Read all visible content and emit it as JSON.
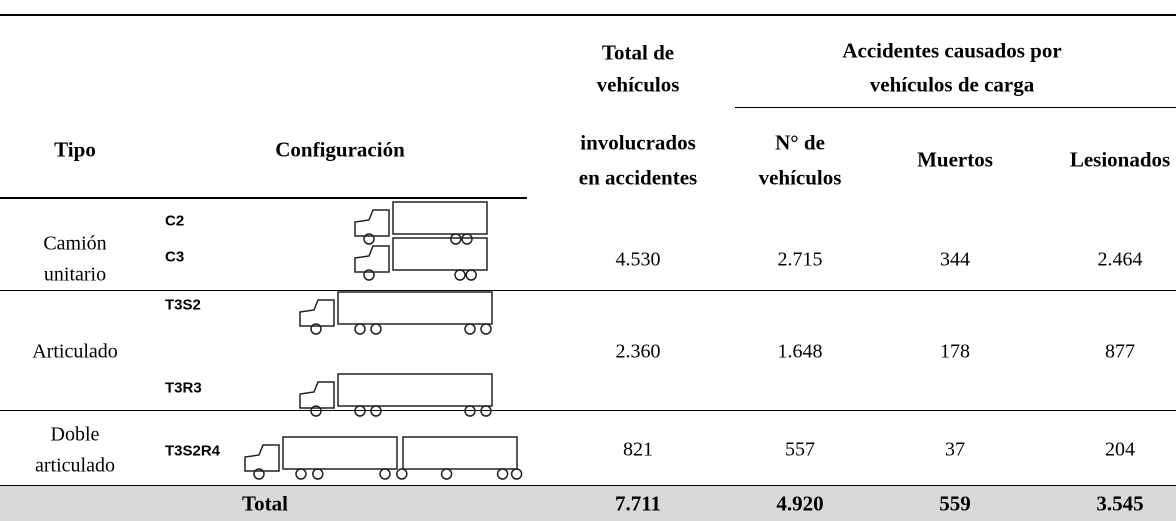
{
  "table": {
    "header": {
      "type": "Tipo",
      "configuration": "Configuración",
      "total_vehicles": [
        "Total de",
        "vehículos",
        "involucrados",
        "en accidentes"
      ],
      "accidents": [
        "Accidentes causados por",
        "vehículos de carga"
      ],
      "columns": [
        [
          "N° de",
          "vehículos"
        ],
        [
          "Muertos"
        ],
        [
          "Lesionados"
        ]
      ]
    },
    "rows": [
      {
        "type": [
          "Camión",
          "unitario"
        ],
        "configurations": [
          "C2",
          "C3"
        ],
        "total_vehicles": "4.530",
        "vehicles": "2.715",
        "deaths": "344",
        "injured": "2.464"
      },
      {
        "type": [
          "Articulado"
        ],
        "configurations": [
          "T3S2",
          "T3R3"
        ],
        "total_vehicles": "2.360",
        "vehicles": "1.648",
        "deaths": "178",
        "injured": "877"
      },
      {
        "type": [
          "Doble",
          "articulado"
        ],
        "configurations": [
          "T3S2R4"
        ],
        "total_vehicles": "821",
        "vehicles": "557",
        "deaths": "37",
        "injured": "204"
      }
    ],
    "total": {
      "label": "Total",
      "total_vehicles": "7.711",
      "vehicles": "4.920",
      "deaths": "559",
      "injured": "3.545"
    }
  }
}
